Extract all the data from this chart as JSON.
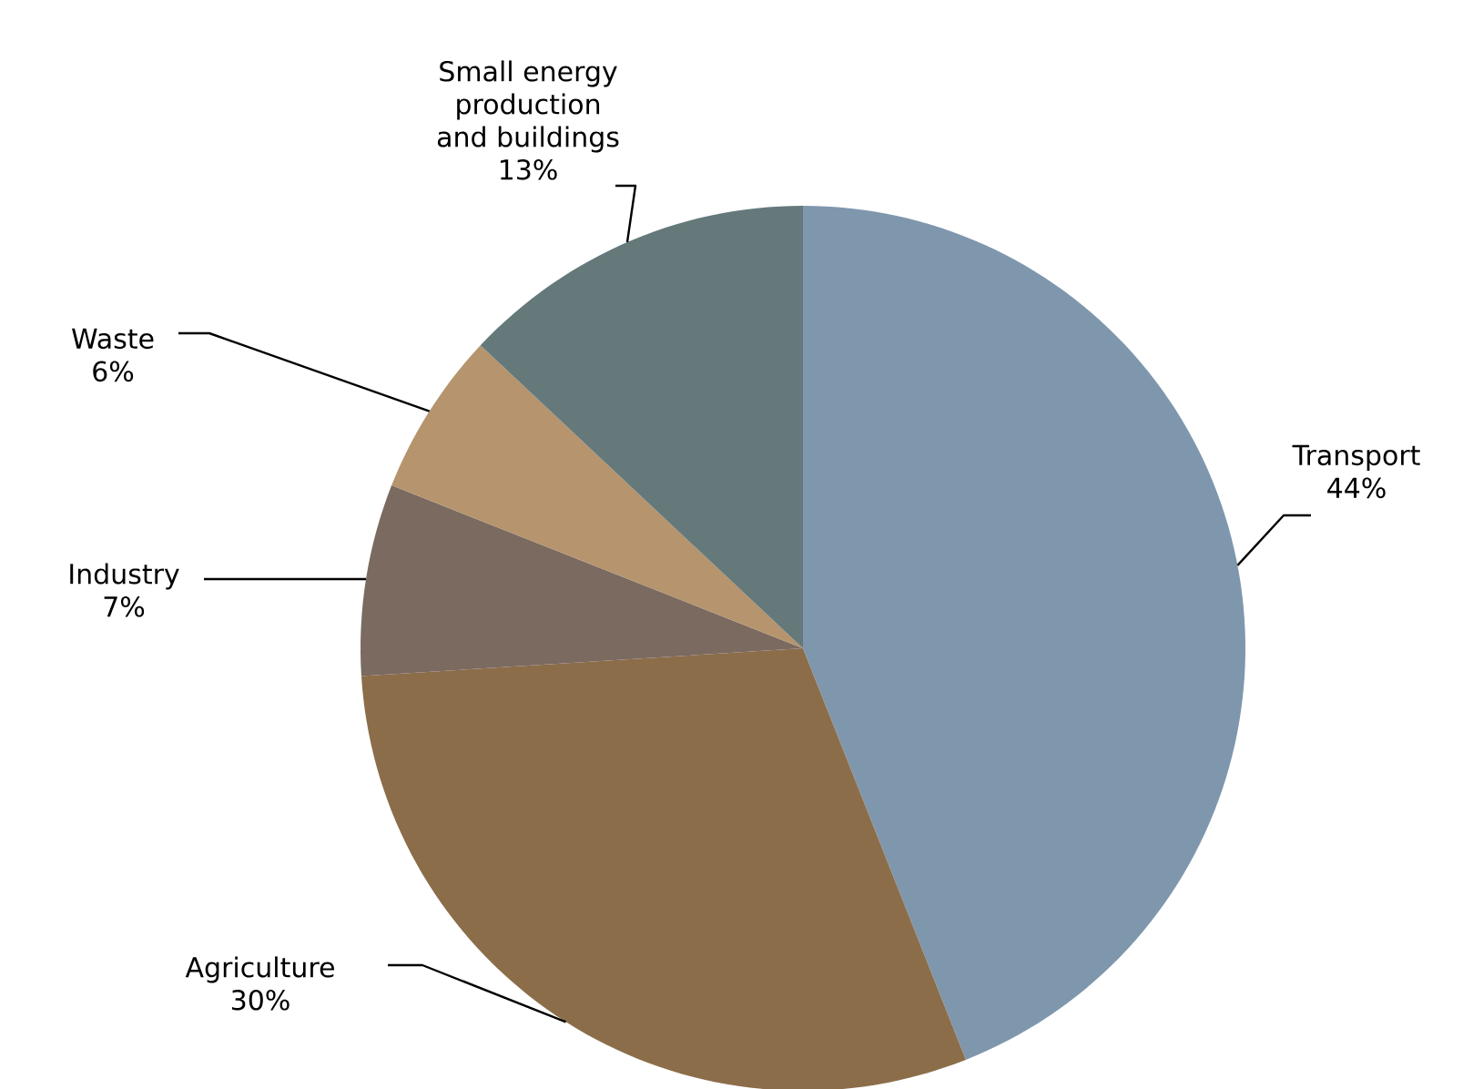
{
  "chart_data": {
    "type": "pie",
    "categories": [
      "Transport",
      "Agriculture",
      "Industry",
      "Waste",
      "Small energy production and buildings"
    ],
    "values": [
      44,
      30,
      7,
      6,
      13
    ],
    "value_labels": [
      "44%",
      "30%",
      "7%",
      "6%",
      "13%"
    ],
    "colors": [
      "#7f97ad",
      "#8c6d4a",
      "#7a6a5f",
      "#b5946e",
      "#65797b"
    ]
  }
}
